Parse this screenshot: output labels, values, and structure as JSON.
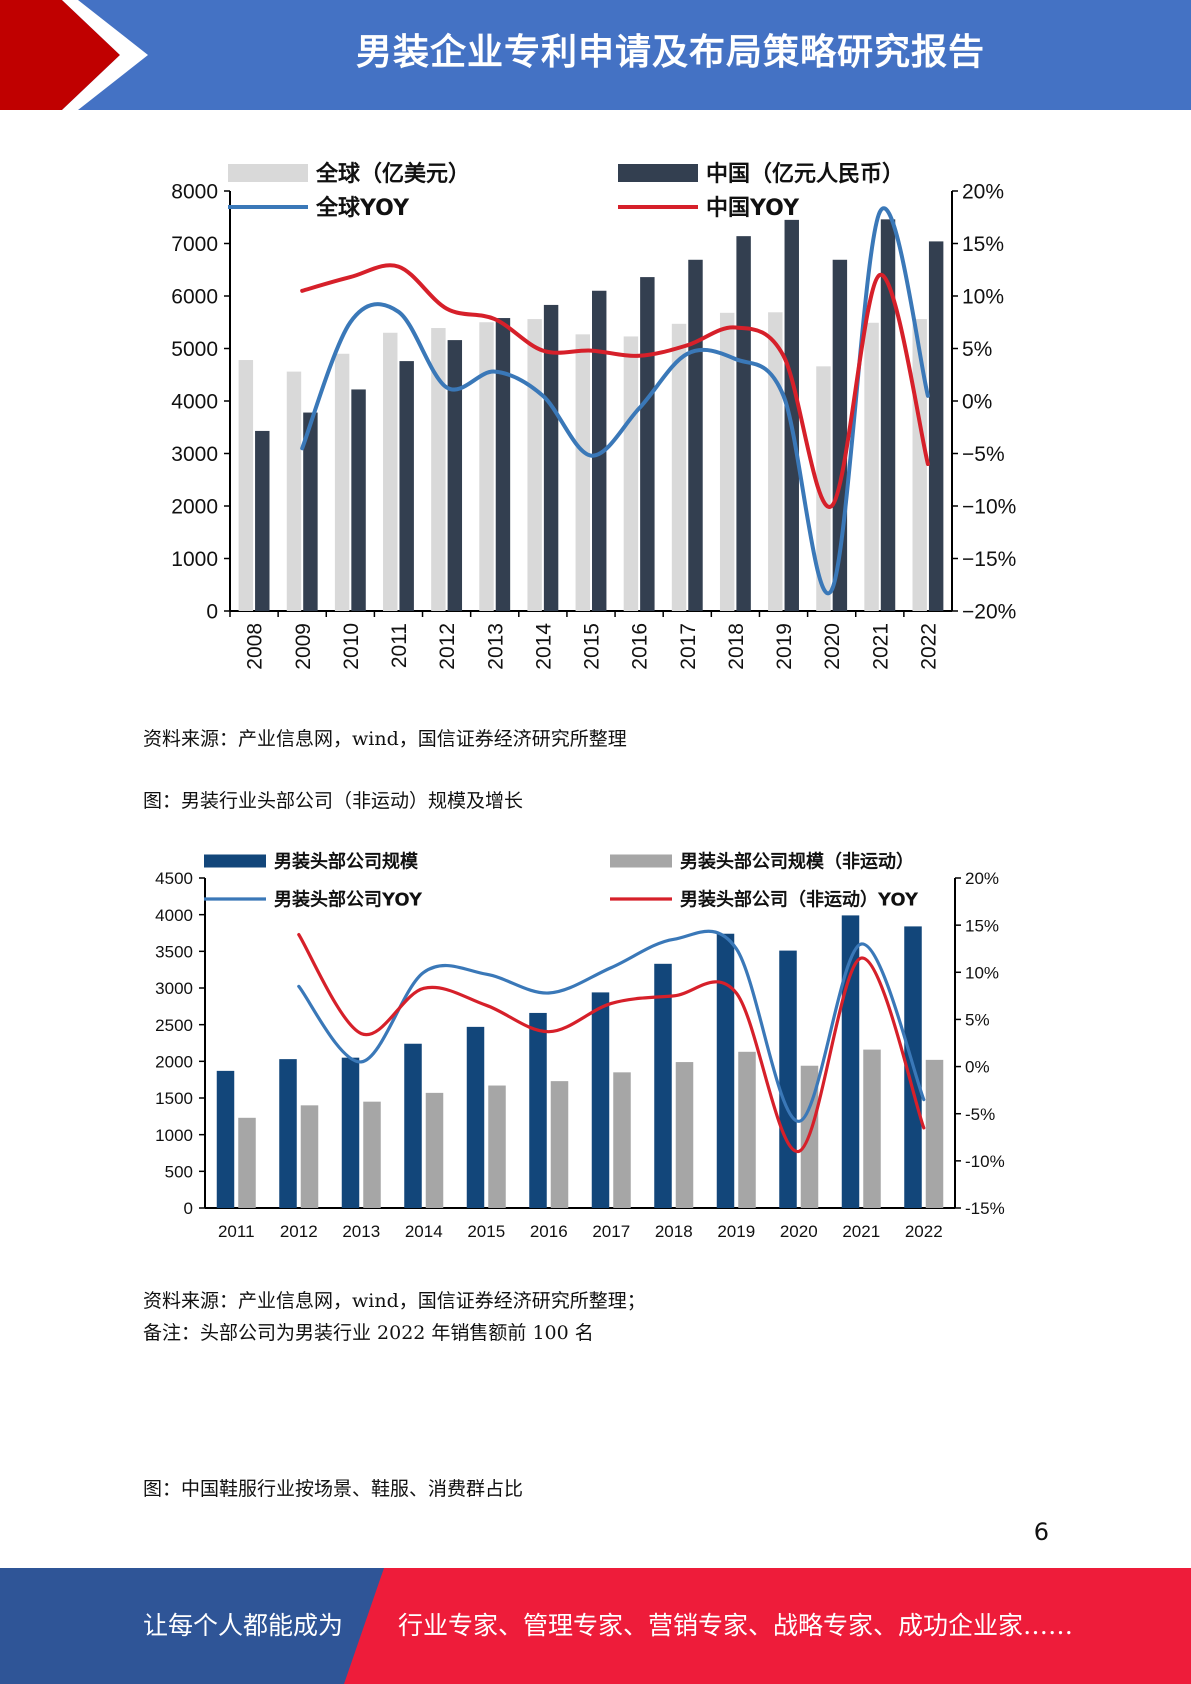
{
  "header": {
    "title": "男装企业专利申请及布局策略研究报告"
  },
  "colors": {
    "header_blue": "#4472c4",
    "accent_red": "#c00000",
    "footer_blue": "#2f5597",
    "footer_red": "#ee1c3a"
  },
  "captions": {
    "source1": "资料来源：产业信息网，wind，国信证券经济研究所整理",
    "figure2_title": "图：男装行业头部公司（非运动）规模及增长",
    "source2": "资料来源：产业信息网，wind，国信证券经济研究所整理；",
    "note2": "备注：头部公司为男装行业 2022 年销售额前 100 名",
    "figure3_title": "图：中国鞋服行业按场景、鞋服、消费群占比"
  },
  "page_number": "6",
  "footer": {
    "left_text": "让每个人都能成为",
    "right_text": "行业专家、管理专家、营销专家、战略专家、成功企业家……"
  },
  "chart_data": [
    {
      "type": "bar",
      "categories": [
        "2008",
        "2009",
        "2010",
        "2011",
        "2012",
        "2013",
        "2014",
        "2015",
        "2016",
        "2017",
        "2018",
        "2019",
        "2020",
        "2021",
        "2022"
      ],
      "ylim": [
        0,
        8000
      ],
      "y_ticks": [
        "0",
        "1000",
        "2000",
        "3000",
        "4000",
        "5000",
        "6000",
        "7000",
        "8000"
      ],
      "y2lim": [
        -20,
        20
      ],
      "y2_ticks": [
        "−20%",
        "−15%",
        "−10%",
        "−5%",
        "0%",
        "5%",
        "10%",
        "15%",
        "20%"
      ],
      "grid": false,
      "legend_position": "top",
      "series": [
        {
          "name": "全球（亿美元）",
          "kind": "bar",
          "axis": "left",
          "color": "#d9d9d9",
          "values": [
            4780,
            4560,
            4900,
            5300,
            5390,
            5500,
            5560,
            5270,
            5230,
            5470,
            5680,
            5690,
            4660,
            5490,
            5560
          ]
        },
        {
          "name": "中国（亿元人民币）",
          "kind": "bar",
          "axis": "left",
          "color": "#333f50",
          "values": [
            3430,
            3780,
            4220,
            4760,
            5160,
            5580,
            5830,
            6100,
            6360,
            6690,
            7140,
            7450,
            6690,
            7460,
            7040
          ]
        },
        {
          "name": "全球YOY",
          "kind": "line",
          "axis": "right",
          "color": "#3a78b8",
          "values": [
            null,
            -4.5,
            7.5,
            8.5,
            1.3,
            2.8,
            0.5,
            -5.2,
            -0.7,
            4.5,
            4.0,
            0.5,
            -18.0,
            18.0,
            0.5
          ]
        },
        {
          "name": "中国YOY",
          "kind": "line",
          "axis": "right",
          "color": "#d6202a",
          "values": [
            null,
            10.5,
            11.8,
            12.8,
            8.8,
            7.8,
            4.8,
            4.8,
            4.3,
            5.3,
            7.0,
            4.3,
            -10.0,
            12.0,
            -6.0
          ]
        }
      ]
    },
    {
      "type": "bar",
      "categories": [
        "2011",
        "2012",
        "2013",
        "2014",
        "2015",
        "2016",
        "2017",
        "2018",
        "2019",
        "2020",
        "2021",
        "2022"
      ],
      "ylim": [
        0,
        4500
      ],
      "y_ticks": [
        "0",
        "500",
        "1000",
        "1500",
        "2000",
        "2500",
        "3000",
        "3500",
        "4000",
        "4500"
      ],
      "y2lim": [
        -15,
        20
      ],
      "y2_ticks": [
        "-15%",
        "-10%",
        "-5%",
        "0%",
        "5%",
        "10%",
        "15%",
        "20%"
      ],
      "grid": false,
      "legend_position": "top",
      "series": [
        {
          "name": "男装头部公司规模",
          "kind": "bar",
          "axis": "left",
          "color": "#12467a",
          "values": [
            1870,
            2030,
            2050,
            2240,
            2470,
            2660,
            2940,
            3330,
            3740,
            3510,
            3990,
            3840
          ]
        },
        {
          "name": "男装头部公司规模（非运动）",
          "kind": "bar",
          "axis": "left",
          "color": "#a6a6a6",
          "values": [
            1230,
            1400,
            1450,
            1570,
            1670,
            1730,
            1850,
            1990,
            2130,
            1940,
            2160,
            2020
          ]
        },
        {
          "name": "男装头部公司YOY",
          "kind": "line",
          "axis": "right",
          "color": "#3a78b8",
          "values": [
            null,
            8.5,
            0.5,
            10.0,
            9.8,
            7.8,
            10.5,
            13.5,
            12.5,
            -5.8,
            13.0,
            -3.5
          ]
        },
        {
          "name": "男装头部公司（非运动）YOY",
          "kind": "line",
          "axis": "right",
          "color": "#d6202a",
          "values": [
            null,
            14.0,
            3.5,
            8.3,
            6.5,
            3.7,
            6.7,
            7.5,
            7.8,
            -9.0,
            11.5,
            -6.5
          ]
        }
      ]
    }
  ]
}
